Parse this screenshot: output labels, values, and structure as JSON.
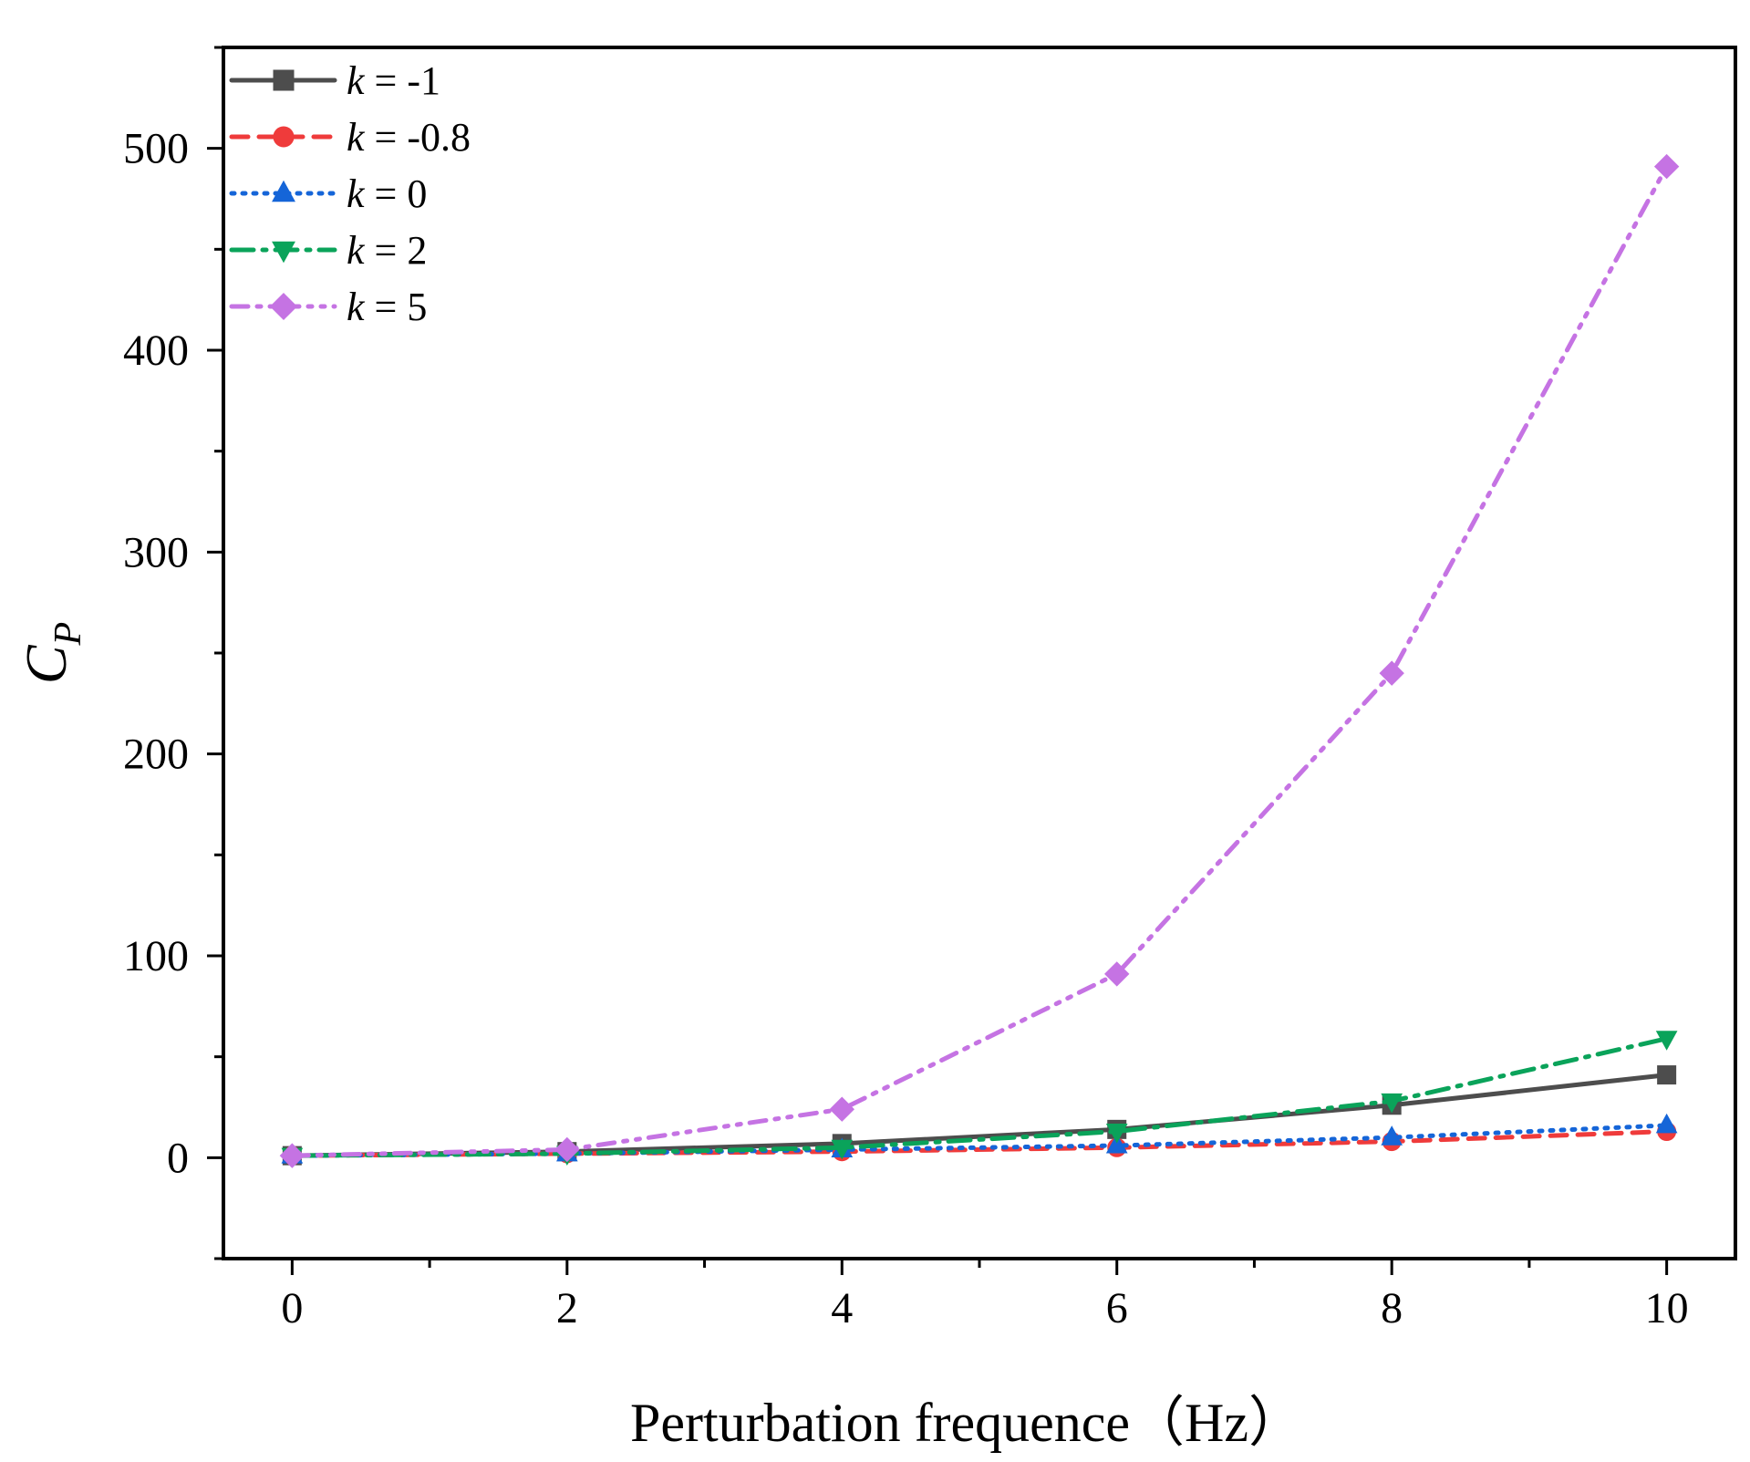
{
  "chart_data": {
    "type": "line",
    "title": "",
    "xlabel": "Perturbation frequence（Hz）",
    "ylabel_main": "C",
    "ylabel_sub": "P",
    "xlim": [
      -0.5,
      10.5
    ],
    "ylim": [
      -50,
      550
    ],
    "x_ticks": [
      0,
      2,
      4,
      6,
      8,
      10
    ],
    "y_ticks": [
      0,
      100,
      200,
      300,
      400,
      500
    ],
    "x_tick_labels": [
      "0",
      "2",
      "4",
      "6",
      "8",
      "10"
    ],
    "y_tick_labels": [
      "0",
      "100",
      "200",
      "300",
      "400",
      "500"
    ],
    "legend_position": "top-left",
    "x": [
      0,
      2,
      4,
      6,
      8,
      10
    ],
    "series": [
      {
        "name": "k = -1",
        "var": "k",
        "rest": " = -1",
        "color": "#4d4d4d",
        "dash": "",
        "marker": "square",
        "values": [
          1,
          3,
          7,
          14,
          26,
          41
        ]
      },
      {
        "name": "k = -0.8",
        "var": "k",
        "rest": " = -0.8",
        "color": "#ef3b3b",
        "dash": "18,12",
        "marker": "circle",
        "values": [
          1,
          2,
          3,
          5,
          8,
          13
        ]
      },
      {
        "name": "k = 0",
        "var": "k",
        "rest": " = 0",
        "color": "#1565d8",
        "dash": "3,9",
        "marker": "triangle-up",
        "values": [
          1,
          2,
          4,
          6,
          10,
          16
        ]
      },
      {
        "name": "k = 2",
        "var": "k",
        "rest": " = 2",
        "color": "#0aa35a",
        "dash": "24,10,4,10",
        "marker": "triangle-down",
        "values": [
          1,
          2,
          5,
          13,
          28,
          59
        ]
      },
      {
        "name": "k = 5",
        "var": "k",
        "rest": " = 5",
        "color": "#c573e3",
        "dash": "18,10,4,10,4,10",
        "marker": "diamond",
        "values": [
          1,
          4,
          24,
          91,
          240,
          491
        ]
      }
    ]
  }
}
